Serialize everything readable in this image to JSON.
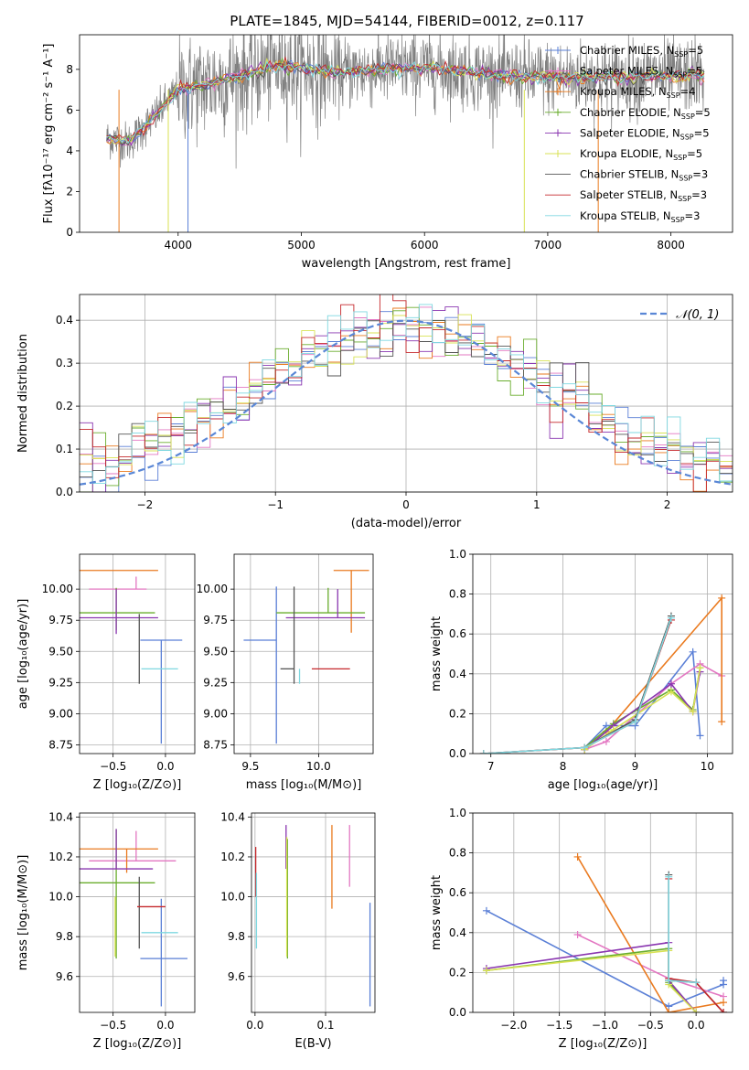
{
  "figure": {
    "title": "PLATE=1845, MJD=54144, FIBERID=0012, z=0.117"
  },
  "chart_data": [
    {
      "id": "spectrum",
      "type": "line",
      "xlabel": "wavelength [Angstrom, rest frame]",
      "ylabel": "Flux [fλ10⁻¹⁷ erg cm⁻² s⁻¹ A⁻¹]",
      "xlim": [
        3200,
        8500
      ],
      "ylim": [
        0,
        9.7
      ],
      "xticks": [
        4000,
        5000,
        6000,
        7000,
        8000
      ],
      "yticks": [
        0,
        2,
        4,
        6,
        8
      ],
      "grid": false,
      "legend_position": "upper right",
      "continuum_x": [
        3450,
        3600,
        3800,
        4000,
        4200,
        4500,
        4800,
        5000,
        5300,
        5600,
        6000,
        6300,
        6600,
        7000,
        7300,
        7600,
        8000,
        8250
      ],
      "continuum_y": [
        4.6,
        4.4,
        5.6,
        7.0,
        7.2,
        7.7,
        8.2,
        8.1,
        7.8,
        8.0,
        8.1,
        7.9,
        7.7,
        7.6,
        7.6,
        7.6,
        7.7,
        7.7
      ],
      "observed_x_range": [
        3420,
        8270
      ],
      "model_dips": [
        {
          "x": 3520,
          "series": 2
        },
        {
          "x": 3920,
          "series": 5
        },
        {
          "x": 4080,
          "series": 0
        },
        {
          "x": 6810,
          "series": 5
        },
        {
          "x": 7410,
          "series": 2
        }
      ],
      "series": [
        {
          "name": "Chabrier MILES, N",
          "sub": "SSP",
          "suffix": "=5",
          "color": "#5a7fd6",
          "marker": true
        },
        {
          "name": "Salpeter MILES, N",
          "sub": "SSP",
          "suffix": "=5",
          "color": "#e377c2",
          "marker": true
        },
        {
          "name": "Kroupa MILES, N",
          "sub": "SSP",
          "suffix": "=4",
          "color": "#ea7a1f",
          "marker": true
        },
        {
          "name": "Chabrier ELODIE, N",
          "sub": "SSP",
          "suffix": "=5",
          "color": "#6aad2e",
          "marker": true
        },
        {
          "name": "Salpeter ELODIE, N",
          "sub": "SSP",
          "suffix": "=5",
          "color": "#8a36b0",
          "marker": true
        },
        {
          "name": "Kroupa ELODIE, N",
          "sub": "SSP",
          "suffix": "=5",
          "color": "#d8e254",
          "marker": true
        },
        {
          "name": "Chabrier STELIB, N",
          "sub": "SSP",
          "suffix": "=3",
          "color": "#555555",
          "marker": false
        },
        {
          "name": "Salpeter STELIB, N",
          "sub": "SSP",
          "suffix": "=3",
          "color": "#c5282c",
          "marker": false
        },
        {
          "name": "Kroupa STELIB, N",
          "sub": "SSP",
          "suffix": "=3",
          "color": "#7fd8e0",
          "marker": false
        }
      ]
    },
    {
      "id": "residuals",
      "type": "histogram",
      "xlabel": "(data-model)/error",
      "ylabel": "Normed distribution",
      "xlim": [
        -2.5,
        2.5
      ],
      "ylim": [
        0,
        0.46
      ],
      "xticks": [
        -2,
        -1,
        0,
        1,
        2
      ],
      "yticks": [
        0.0,
        0.1,
        0.2,
        0.3,
        0.4
      ],
      "grid": true,
      "legend_position": "upper right",
      "normal_label": "𝒩(0, 1)",
      "normal_color": "#5a87d6",
      "bins": 50,
      "bin_range": [
        -2.5,
        2.5
      ]
    },
    {
      "id": "age-vs-Z",
      "type": "errorbar",
      "xlabel": "Z [log₁₀(Z/Z⊙)]",
      "ylabel": "age  [log₁₀(age/yr)]",
      "xlim": [
        -0.82,
        0.28
      ],
      "ylim": [
        8.68,
        10.28
      ],
      "xticks": [
        -0.5,
        0.0
      ],
      "xticklabels": [
        "−0.5",
        "0.0"
      ],
      "yticks": [
        8.75,
        9.0,
        9.25,
        9.5,
        9.75,
        10.0
      ],
      "yticklabels": [
        "8.75",
        "9.00",
        "9.25",
        "9.50",
        "9.75",
        "10.00"
      ],
      "grid": true,
      "points": [
        {
          "series": 0,
          "x": -0.04,
          "xerr": [
            0.2,
            0.2
          ],
          "y": 9.59,
          "yerr": [
            0.83,
            0.0
          ]
        },
        {
          "series": 1,
          "x": -0.28,
          "xerr": [
            0.45,
            0.1
          ],
          "y": 10.0,
          "yerr": [
            0.0,
            0.1
          ]
        },
        {
          "series": 2,
          "x": -0.37,
          "xerr": [
            0.55,
            0.3
          ],
          "y": 10.15,
          "yerr": [
            0.0,
            0.0
          ]
        },
        {
          "series": 3,
          "x": -0.47,
          "xerr": [
            0.4,
            0.37
          ],
          "y": 9.81,
          "yerr": [
            0.14,
            0.2
          ]
        },
        {
          "series": 4,
          "x": -0.47,
          "xerr": [
            0.45,
            0.4
          ],
          "y": 9.77,
          "yerr": [
            0.13,
            0.23
          ]
        },
        {
          "series": 6,
          "x": -0.25,
          "xerr": [
            0.0,
            0.0
          ],
          "y": 9.36,
          "yerr": [
            0.12,
            0.44
          ]
        },
        {
          "series": 8,
          "x": -0.05,
          "xerr": [
            0.18,
            0.17
          ],
          "y": 9.36,
          "yerr": [
            0.0,
            0.0
          ]
        }
      ]
    },
    {
      "id": "age-vs-mass",
      "type": "errorbar",
      "xlabel": "mass [log₁₀(M/M⊙)]",
      "ylabel": "",
      "xlim": [
        9.38,
        10.4
      ],
      "ylim": [
        8.68,
        10.28
      ],
      "xticks": [
        9.5,
        10.0
      ],
      "xticklabels": [
        "9.5",
        "10.0"
      ],
      "yticks": [
        8.75,
        9.0,
        9.25,
        9.5,
        9.75,
        10.0
      ],
      "yticklabels": [
        "8.75",
        "9.00",
        "9.25",
        "9.50",
        "9.75",
        "10.00"
      ],
      "grid": true,
      "points": [
        {
          "series": 0,
          "x": 9.69,
          "xerr": [
            0.24,
            0.0
          ],
          "y": 9.59,
          "yerr": [
            0.83,
            0.43
          ]
        },
        {
          "series": 1,
          "x": 10.18,
          "xerr": [
            0.0,
            0.0
          ],
          "y": 10.0,
          "yerr": [
            0.0,
            0.0
          ]
        },
        {
          "series": 2,
          "x": 10.24,
          "xerr": [
            0.13,
            0.13
          ],
          "y": 10.15,
          "yerr": [
            0.5,
            0.0
          ]
        },
        {
          "series": 3,
          "x": 10.07,
          "xerr": [
            0.38,
            0.27
          ],
          "y": 9.81,
          "yerr": [
            0.0,
            0.2
          ]
        },
        {
          "series": 4,
          "x": 10.14,
          "xerr": [
            0.38,
            0.2
          ],
          "y": 9.77,
          "yerr": [
            0.0,
            0.23
          ]
        },
        {
          "series": 6,
          "x": 9.82,
          "xerr": [
            0.1,
            0.0
          ],
          "y": 9.36,
          "yerr": [
            0.12,
            0.66
          ]
        },
        {
          "series": 7,
          "x": 9.95,
          "xerr": [
            0.0,
            0.28
          ],
          "y": 9.36,
          "yerr": [
            0.0,
            0.0
          ]
        },
        {
          "series": 8,
          "x": 9.86,
          "xerr": [
            0.0,
            0.0
          ],
          "y": 9.36,
          "yerr": [
            0.12,
            0.0
          ]
        }
      ]
    },
    {
      "id": "weight-vs-age",
      "type": "line",
      "xlabel": "age  [log₁₀(age/yr)]",
      "ylabel": "mass weight",
      "xlim": [
        6.75,
        10.35
      ],
      "ylim": [
        0,
        1.0
      ],
      "xticks": [
        7,
        8,
        9,
        10
      ],
      "yticks": [
        0.0,
        0.2,
        0.4,
        0.6,
        0.8,
        1.0
      ],
      "grid": true,
      "series_points": [
        {
          "series": 0,
          "x": [
            8.3,
            8.6,
            9.0,
            9.8,
            9.9
          ],
          "y": [
            0.03,
            0.14,
            0.14,
            0.51,
            0.09
          ]
        },
        {
          "series": 1,
          "x": [
            8.3,
            8.6,
            9.5,
            9.9,
            10.2
          ],
          "y": [
            0.02,
            0.06,
            0.35,
            0.45,
            0.39
          ]
        },
        {
          "series": 2,
          "x": [
            8.3,
            8.6,
            10.2,
            10.2
          ],
          "y": [
            0.02,
            0.11,
            0.78,
            0.16
          ]
        },
        {
          "series": 3,
          "x": [
            8.3,
            8.7,
            9.5,
            9.8,
            9.9
          ],
          "y": [
            0.03,
            0.15,
            0.32,
            0.22,
            0.43
          ]
        },
        {
          "series": 4,
          "x": [
            8.3,
            8.7,
            9.5,
            9.8,
            9.9
          ],
          "y": [
            0.02,
            0.14,
            0.35,
            0.21,
            0.41
          ]
        },
        {
          "series": 5,
          "x": [
            8.3,
            8.7,
            9.5,
            9.8,
            9.9
          ],
          "y": [
            0.02,
            0.12,
            0.31,
            0.21,
            0.43
          ]
        },
        {
          "series": 6,
          "x": [
            6.9,
            8.3,
            9.0,
            9.5
          ],
          "y": [
            0.0,
            0.03,
            0.17,
            0.69
          ]
        },
        {
          "series": 7,
          "x": [
            6.9,
            8.3,
            9.0,
            9.5
          ],
          "y": [
            0.0,
            0.03,
            0.16,
            0.67
          ]
        },
        {
          "series": 8,
          "x": [
            6.9,
            8.3,
            9.0,
            9.5
          ],
          "y": [
            0.0,
            0.03,
            0.16,
            0.68
          ]
        }
      ]
    },
    {
      "id": "mass-vs-Z",
      "type": "errorbar",
      "xlabel": "Z [log₁₀(Z/Z⊙)]",
      "ylabel": "mass [log₁₀(M/M⊙)]",
      "xlim": [
        -0.82,
        0.28
      ],
      "ylim": [
        9.42,
        10.42
      ],
      "xticks": [
        -0.5,
        0.0
      ],
      "xticklabels": [
        "−0.5",
        "0.0"
      ],
      "yticks": [
        9.6,
        9.8,
        10.0,
        10.2,
        10.4
      ],
      "yticklabels": [
        "9.6",
        "9.8",
        "10.0",
        "10.2",
        "10.4"
      ],
      "grid": true,
      "points": [
        {
          "series": 0,
          "x": -0.04,
          "xerr": [
            0.2,
            0.25
          ],
          "y": 9.69,
          "yerr": [
            0.24,
            0.3
          ]
        },
        {
          "series": 1,
          "x": -0.28,
          "xerr": [
            0.45,
            0.38
          ],
          "y": 10.18,
          "yerr": [
            0.0,
            0.15
          ]
        },
        {
          "series": 2,
          "x": -0.37,
          "xerr": [
            0.55,
            0.3
          ],
          "y": 10.24,
          "yerr": [
            0.12,
            0.0
          ]
        },
        {
          "series": 3,
          "x": -0.47,
          "xerr": [
            0.4,
            0.37
          ],
          "y": 10.07,
          "yerr": [
            0.38,
            0.27
          ]
        },
        {
          "series": 4,
          "x": -0.47,
          "xerr": [
            0.45,
            0.35
          ],
          "y": 10.14,
          "yerr": [
            0.0,
            0.2
          ]
        },
        {
          "series": 5,
          "x": -0.48,
          "xerr": [
            0.0,
            0.0
          ],
          "y": 10.0,
          "yerr": [
            0.3,
            0.0
          ]
        },
        {
          "series": 6,
          "x": -0.25,
          "xerr": [
            0.0,
            0.0
          ],
          "y": 9.82,
          "yerr": [
            0.08,
            0.28
          ]
        },
        {
          "series": 7,
          "x": -0.12,
          "xerr": [
            0.15,
            0.12
          ],
          "y": 9.95,
          "yerr": [
            0.0,
            0.0
          ]
        },
        {
          "series": 8,
          "x": -0.05,
          "xerr": [
            0.18,
            0.17
          ],
          "y": 9.82,
          "yerr": [
            0.0,
            0.0
          ]
        }
      ]
    },
    {
      "id": "mass-vs-EBV",
      "type": "errorbar",
      "xlabel": "E(B-V)",
      "ylabel": "",
      "xlim": [
        -0.005,
        0.17
      ],
      "ylim": [
        9.42,
        10.42
      ],
      "xticks": [
        0.0,
        0.1
      ],
      "xticklabels": [
        "0.0",
        "0.1"
      ],
      "yticks": [
        9.6,
        9.8,
        10.0,
        10.2,
        10.4
      ],
      "yticklabels": [
        "9.6",
        "9.8",
        "10.0",
        "10.2",
        "10.4"
      ],
      "grid": true,
      "points": [
        {
          "series": 0,
          "x": 0.163,
          "xerr": [
            0.0,
            0.0
          ],
          "y": 9.69,
          "yerr": [
            0.24,
            0.28
          ]
        },
        {
          "series": 1,
          "x": 0.134,
          "xerr": [
            0.0,
            0.0
          ],
          "y": 10.18,
          "yerr": [
            0.13,
            0.18
          ]
        },
        {
          "series": 2,
          "x": 0.109,
          "xerr": [
            0.0,
            0.0
          ],
          "y": 10.24,
          "yerr": [
            0.3,
            0.12
          ]
        },
        {
          "series": 3,
          "x": 0.046,
          "xerr": [
            0.0,
            0.0
          ],
          "y": 10.07,
          "yerr": [
            0.38,
            0.22
          ]
        },
        {
          "series": 4,
          "x": 0.044,
          "xerr": [
            0.0,
            0.0
          ],
          "y": 10.14,
          "yerr": [
            0.0,
            0.22
          ]
        },
        {
          "series": 5,
          "x": 0.045,
          "xerr": [
            0.0,
            0.0
          ],
          "y": 10.0,
          "yerr": [
            0.3,
            0.3
          ]
        },
        {
          "series": 7,
          "x": 0.001,
          "xerr": [
            0.0,
            0.0
          ],
          "y": 10.0,
          "yerr": [
            0.0,
            0.25
          ]
        },
        {
          "series": 8,
          "x": 0.002,
          "xerr": [
            0.0,
            0.0
          ],
          "y": 9.82,
          "yerr": [
            0.08,
            0.3
          ]
        }
      ]
    },
    {
      "id": "weight-vs-Z",
      "type": "line",
      "xlabel": "Z [log₁₀(Z/Z⊙)]",
      "ylabel": "mass weight",
      "xlim": [
        -2.45,
        0.4
      ],
      "ylim": [
        0,
        1.0
      ],
      "xticks": [
        -2.0,
        -1.5,
        -1.0,
        -0.5,
        0.0
      ],
      "xticklabels": [
        "−2.0",
        "−1.5",
        "−1.0",
        "−0.5",
        "0.0"
      ],
      "yticks": [
        0.0,
        0.2,
        0.4,
        0.6,
        0.8,
        1.0
      ],
      "grid": true,
      "series_points": [
        {
          "series": 0,
          "x": [
            -2.3,
            -0.3,
            0.3,
            0.3
          ],
          "y": [
            0.51,
            0.03,
            0.14,
            0.16
          ]
        },
        {
          "series": 1,
          "x": [
            -1.3,
            -0.3,
            0.3
          ],
          "y": [
            0.39,
            0.17,
            0.08
          ]
        },
        {
          "series": 2,
          "x": [
            -1.3,
            -0.3,
            0.3
          ],
          "y": [
            0.78,
            0.0,
            0.05
          ]
        },
        {
          "series": 3,
          "x": [
            -2.3,
            -0.3,
            -0.3,
            0.0
          ],
          "y": [
            0.21,
            0.32,
            0.15,
            0.0
          ]
        },
        {
          "series": 4,
          "x": [
            -2.3,
            -0.3,
            -0.3,
            0.0
          ],
          "y": [
            0.22,
            0.35,
            0.16,
            0.0
          ]
        },
        {
          "series": 5,
          "x": [
            -2.3,
            -0.3,
            -0.3,
            0.0
          ],
          "y": [
            0.21,
            0.31,
            0.14,
            0.0
          ]
        },
        {
          "series": 6,
          "x": [
            -0.3,
            -0.3,
            0.0,
            0.3
          ],
          "y": [
            0.69,
            0.16,
            0.15,
            0.0
          ]
        },
        {
          "series": 7,
          "x": [
            -0.3,
            -0.3,
            0.0,
            0.3
          ],
          "y": [
            0.67,
            0.17,
            0.15,
            0.0
          ]
        },
        {
          "series": 8,
          "x": [
            -0.3,
            -0.3,
            0.0
          ],
          "y": [
            0.68,
            0.16,
            0.15
          ]
        }
      ]
    }
  ]
}
